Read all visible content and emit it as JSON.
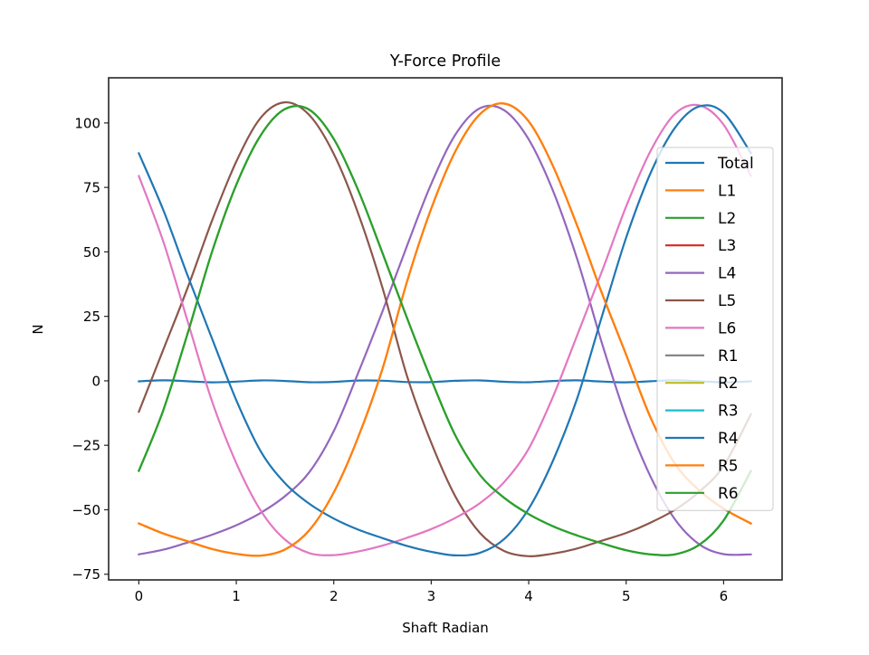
{
  "figure": {
    "background": "#ffffff",
    "axes_color": "#262626"
  },
  "chart_data": {
    "type": "line",
    "title": "Y-Force Profile",
    "xlabel": "Shaft Radian",
    "ylabel": "N",
    "xlim": [
      -0.31,
      6.6
    ],
    "ylim": [
      -77.2,
      117.5
    ],
    "xticks": [
      0,
      1,
      2,
      3,
      4,
      5,
      6
    ],
    "xtick_labels": [
      "0",
      "1",
      "2",
      "3",
      "4",
      "5",
      "6"
    ],
    "yticks": [
      -75,
      -50,
      -25,
      0,
      25,
      50,
      75,
      100
    ],
    "ytick_labels": [
      "−75",
      "−50",
      "−25",
      "0",
      "25",
      "50",
      "75",
      "100"
    ],
    "grid": false,
    "legend_position": "right, upper-center (inside axes)",
    "x": [
      0,
      0.25,
      0.5,
      0.75,
      1.0,
      1.25,
      1.5,
      1.75,
      2.0,
      2.25,
      2.5,
      2.75,
      3.0,
      3.25,
      3.5,
      3.75,
      4.0,
      4.25,
      4.5,
      4.75,
      5.0,
      5.25,
      5.5,
      5.75,
      6.0,
      6.28
    ],
    "series": [
      {
        "name": "Total",
        "color": "#1f77b4",
        "values": [
          -0.2,
          0.2,
          -0.16,
          -0.59,
          -0.31,
          0.17,
          -0.04,
          -0.54,
          -0.41,
          0.11,
          0.06,
          -0.47,
          -0.5,
          0.02,
          0.15,
          -0.38,
          -0.56,
          -0.07,
          0.2,
          -0.28,
          -0.6,
          -0.17,
          0.2,
          -0.16,
          -0.6,
          -0.2
        ]
      },
      {
        "name": "L1",
        "color": "#ff7f0e",
        "values": [
          -55.3,
          -59.2,
          -62.2,
          -65.2,
          -67.1,
          -67.8,
          -65.4,
          -57.9,
          -43.3,
          -21.9,
          4.7,
          38.3,
          66.8,
          89.2,
          103.4,
          107.5,
          100.6,
          83.2,
          59.9,
          34.1,
          10.1,
          -14.2,
          -32.1,
          -42.5,
          -49.6,
          -55.3
        ]
      },
      {
        "name": "L2",
        "color": "#2ca02c",
        "values": [
          -34.9,
          -11.5,
          18.3,
          49.9,
          76.0,
          95.2,
          105.4,
          105.1,
          93.8,
          74.0,
          49.5,
          24.5,
          0.5,
          -21.4,
          -36.5,
          -45.4,
          -51.7,
          -56.4,
          -60.0,
          -63.0,
          -65.7,
          -67.3,
          -67.3,
          -63.6,
          -54.1,
          -35.0
        ]
      },
      {
        "name": "L3",
        "color": "#d62728",
        "values": null
      },
      {
        "name": "L4",
        "color": "#9467bd",
        "values": [
          -67.3,
          -65.5,
          -62.7,
          -59.7,
          -56.0,
          -51.2,
          -44.7,
          -35.4,
          -19.5,
          3.0,
          27.0,
          52.2,
          76.4,
          95.6,
          105.7,
          104.9,
          93.6,
          73.6,
          46.9,
          14.8,
          -14.2,
          -37.1,
          -53.7,
          -63.4,
          -67.2,
          -67.3
        ]
      },
      {
        "name": "L5",
        "color": "#8c564b",
        "values": [
          -12,
          12,
          36,
          62,
          85,
          102,
          108,
          103,
          88,
          65,
          36,
          2,
          -24,
          -45,
          -59,
          -66,
          -68,
          -67,
          -65,
          -62,
          -59,
          -55,
          -50,
          -43,
          -33,
          -13
        ]
      },
      {
        "name": "L6",
        "color": "#e377c2",
        "values": [
          79.4,
          54.1,
          23.2,
          -7.8,
          -31.9,
          -50.3,
          -61.6,
          -66.8,
          -67.6,
          -66.2,
          -63.9,
          -60.9,
          -57.5,
          -53.1,
          -47.4,
          -39.2,
          -26.3,
          -6.1,
          17.9,
          42.3,
          67.6,
          89.1,
          103.5,
          106.8,
          99.3,
          79.5
        ]
      },
      {
        "name": "R1",
        "color": "#7f7f7f",
        "values": null
      },
      {
        "name": "R2",
        "color": "#bcbd22",
        "values": null
      },
      {
        "name": "R3",
        "color": "#17becf",
        "values": null
      },
      {
        "name": "R4",
        "color": "#1f77b4",
        "values": [
          88.2,
          66.3,
          40.9,
          16.5,
          -7.5,
          -27.3,
          -39.7,
          -47.7,
          -53.4,
          -57.7,
          -61.0,
          -64.0,
          -66.3,
          -67.7,
          -66.7,
          -61.3,
          -49.6,
          -30.9,
          -6.5,
          24.8,
          55.5,
          80.5,
          98.1,
          106.4,
          103.9,
          88.3
        ]
      },
      {
        "name": "R5",
        "color": "#ff7f0e",
        "values": [
          -55.3,
          -59.2,
          -62.2,
          -65.2,
          -67.1,
          -67.8,
          -65.4,
          -57.9,
          -43.3,
          -21.9,
          4.7,
          38.3,
          66.8,
          89.2,
          103.4,
          107.5,
          100.6,
          83.2,
          59.9,
          34.1,
          10.1,
          -14.2,
          -32.1,
          -42.5,
          -49.6,
          -55.3
        ]
      },
      {
        "name": "R6",
        "color": "#2ca02c",
        "values": [
          -34.9,
          -11.5,
          18.3,
          49.9,
          76.0,
          95.2,
          105.4,
          105.1,
          93.8,
          74.0,
          49.5,
          24.5,
          0.5,
          -21.4,
          -36.5,
          -45.4,
          -51.7,
          -56.4,
          -60.0,
          -63.0,
          -65.7,
          -67.3,
          -67.3,
          -63.6,
          -54.1,
          -35.0
        ]
      }
    ]
  }
}
